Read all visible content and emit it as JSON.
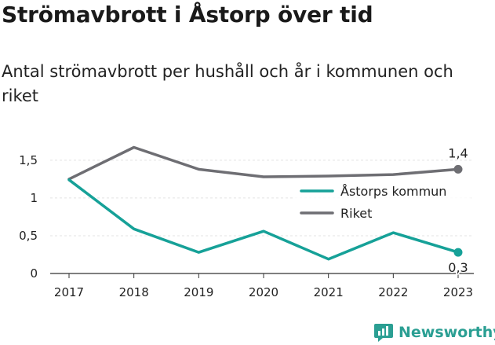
{
  "title": "Strömavbrott i Åstorp över tid",
  "subtitle": "Antal strömavbrott per hushåll och år i kommunen och riket",
  "brand": {
    "name": "Newsworthy",
    "icon": "chart-logo-icon",
    "color": "#2b9f93"
  },
  "chart_data": {
    "type": "line",
    "title": "Strömavbrott i Åstorp över tid",
    "subtitle": "Antal strömavbrott per hushåll och år i kommunen och riket",
    "xlabel": "",
    "ylabel": "",
    "x": [
      "2017",
      "2018",
      "2019",
      "2020",
      "2021",
      "2022",
      "2023"
    ],
    "ylim": [
      0,
      1.8
    ],
    "yticks": [
      {
        "value": 0,
        "label": "0"
      },
      {
        "value": 0.5,
        "label": "0,5"
      },
      {
        "value": 1,
        "label": "1"
      },
      {
        "value": 1.5,
        "label": "1,5"
      }
    ],
    "grid": true,
    "legend_position": "right",
    "series": [
      {
        "name": "Åstorps kommun",
        "color": "#16a198",
        "values": [
          1.24,
          0.59,
          0.28,
          0.56,
          0.19,
          0.54,
          0.28
        ],
        "end_label": "0,3"
      },
      {
        "name": "Riket",
        "color": "#6e6e73",
        "values": [
          1.25,
          1.67,
          1.38,
          1.28,
          1.29,
          1.31,
          1.38
        ],
        "end_label": "1,4"
      }
    ]
  }
}
